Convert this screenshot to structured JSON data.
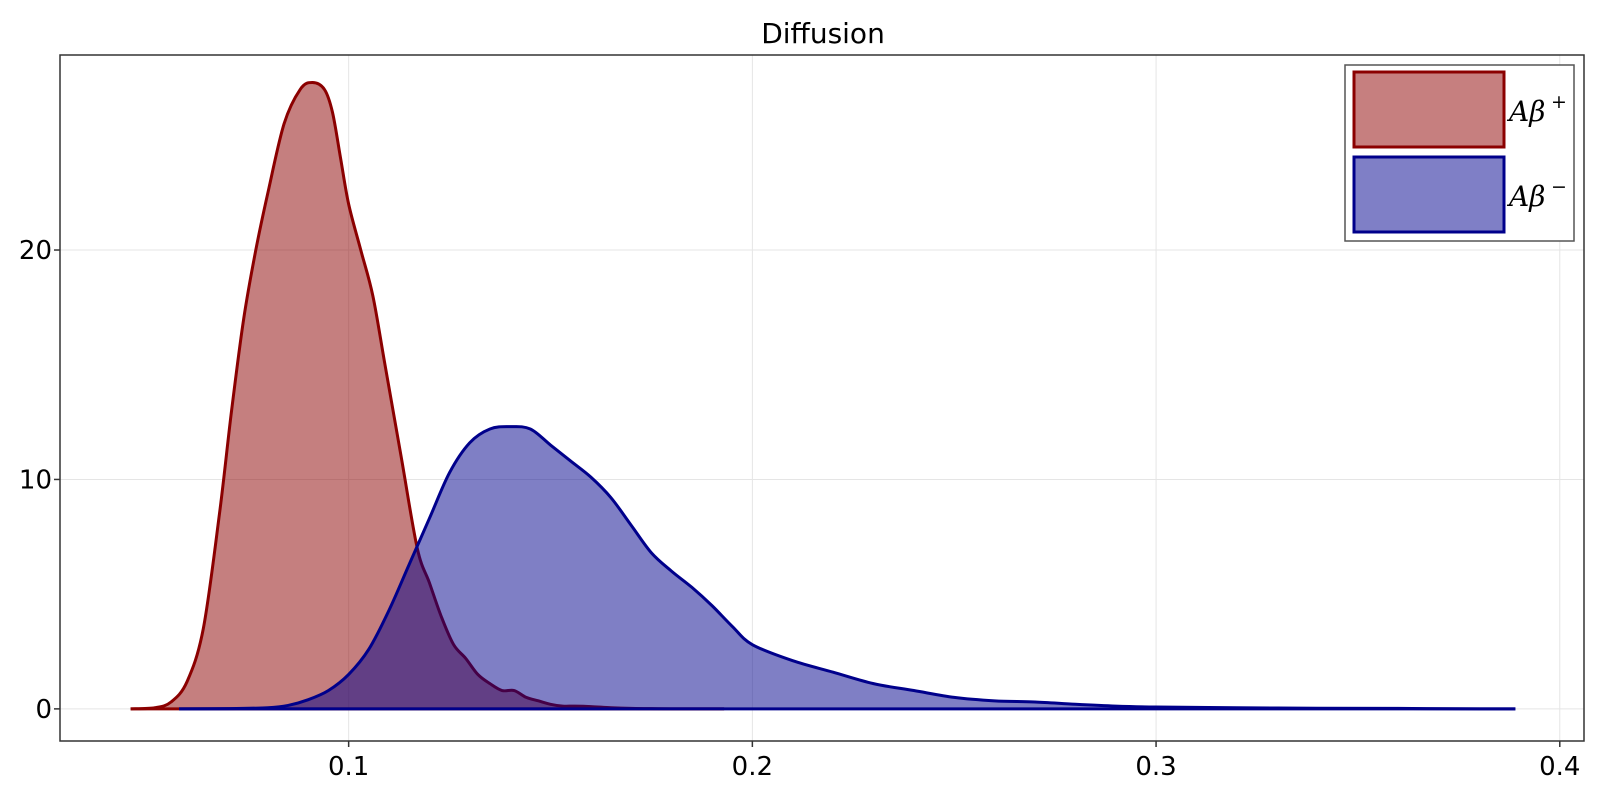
{
  "chart_data": {
    "type": "area",
    "title": "Diffusion",
    "xlabel": "",
    "ylabel": "",
    "xlim": [
      0.0285,
      0.406
    ],
    "ylim": [
      -1.4,
      28.5
    ],
    "xticks": [
      0.1,
      0.2,
      0.3,
      0.4
    ],
    "xtick_labels": [
      "0.1",
      "0.2",
      "0.3",
      "0.4"
    ],
    "yticks": [
      0,
      10,
      20
    ],
    "ytick_labels": [
      "0",
      "10",
      "20"
    ],
    "grid": true,
    "legend_position": "top-right",
    "series": [
      {
        "name": "Aβ+",
        "base": "Aβ",
        "sup": "+",
        "line_color": "#8b0000",
        "fill_color": "#c67f7f",
        "x": [
          0.046,
          0.052,
          0.056,
          0.06,
          0.064,
          0.068,
          0.071,
          0.074,
          0.077,
          0.08,
          0.084,
          0.088,
          0.091,
          0.094,
          0.096,
          0.098,
          0.1,
          0.103,
          0.106,
          0.109,
          0.113,
          0.117,
          0.12,
          0.123,
          0.126,
          0.129,
          0.132,
          0.135,
          0.138,
          0.141,
          0.144,
          0.147,
          0.15,
          0.153,
          0.156,
          0.16,
          0.165,
          0.17,
          0.175,
          0.18,
          0.186,
          0.193
        ],
        "y": [
          0,
          0.05,
          0.3,
          1.2,
          3.5,
          8.5,
          13,
          17,
          20,
          22.5,
          25.5,
          27,
          27.3,
          27,
          26,
          24,
          22,
          20,
          18,
          15,
          11,
          7,
          5.5,
          4,
          2.8,
          2.2,
          1.5,
          1.1,
          0.8,
          0.8,
          0.5,
          0.35,
          0.2,
          0.12,
          0.12,
          0.1,
          0.05,
          0.02,
          0.01,
          0,
          0,
          0
        ]
      },
      {
        "name": "Aβ−",
        "base": "Aβ",
        "sup": "−",
        "line_color": "#00008b",
        "fill_color": "#7f7fc6",
        "x": [
          0.058,
          0.07,
          0.08,
          0.085,
          0.09,
          0.095,
          0.1,
          0.105,
          0.11,
          0.115,
          0.12,
          0.125,
          0.13,
          0.135,
          0.14,
          0.145,
          0.15,
          0.155,
          0.16,
          0.165,
          0.17,
          0.175,
          0.18,
          0.185,
          0.19,
          0.195,
          0.2,
          0.21,
          0.22,
          0.23,
          0.24,
          0.25,
          0.26,
          0.27,
          0.28,
          0.29,
          0.3,
          0.32,
          0.34,
          0.36,
          0.38,
          0.389
        ],
        "y": [
          0,
          0.01,
          0.05,
          0.15,
          0.4,
          0.8,
          1.5,
          2.6,
          4.3,
          6.3,
          8.3,
          10.3,
          11.6,
          12.2,
          12.3,
          12.2,
          11.5,
          10.8,
          10.1,
          9.2,
          8,
          6.8,
          6,
          5.3,
          4.5,
          3.6,
          2.8,
          2.1,
          1.6,
          1.1,
          0.8,
          0.5,
          0.35,
          0.3,
          0.2,
          0.12,
          0.08,
          0.05,
          0.03,
          0.02,
          0,
          0
        ]
      }
    ]
  }
}
